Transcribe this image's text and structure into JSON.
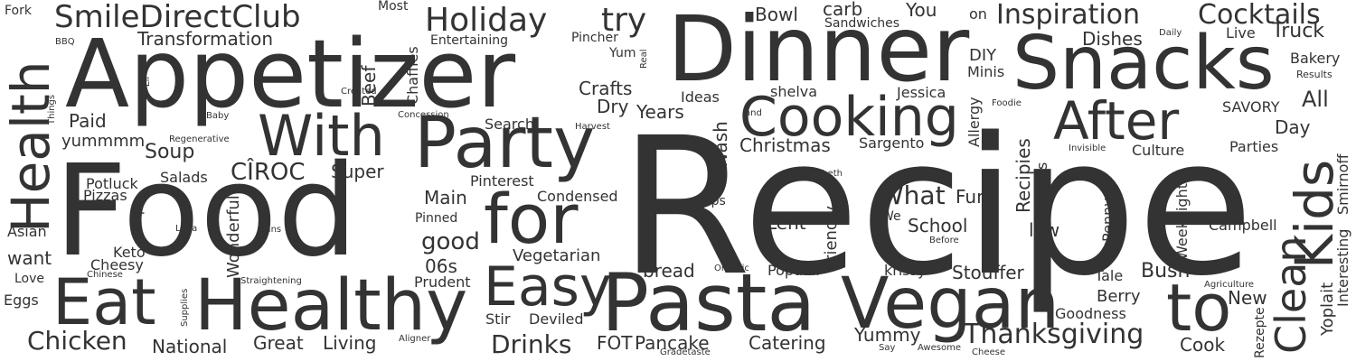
{
  "colors": {
    "background": "#ffffff",
    "text": "#333333"
  },
  "words": {
    "recipe": "Recipe",
    "food": "Food",
    "dinner": "Dinner",
    "appetizer": "Appetizer",
    "snacks": "Snacks",
    "pasta": "Pasta",
    "vegan": "Vegan",
    "healthy": "Healthy",
    "eat": "Eat",
    "party": "Party",
    "cooking": "Cooking",
    "after": "After",
    "with": "With",
    "for": "for",
    "to": "to",
    "health": "Health",
    "kids": "Kids",
    "clean": "Clean",
    "easy": "Easy",
    "smiledirectclub": "SmileDirectClub",
    "holiday": "Holiday",
    "try": "try",
    "inspiration": "Inspiration",
    "cocktails": "Cocktails",
    "thanksgiving": "Thanksgiving",
    "chicken": "Chicken",
    "drinks": "Drinks",
    "transformation": "Transformation",
    "bowl": "Bowl",
    "carb": "carb",
    "you": "You",
    "on": "on",
    "truck": "Truck",
    "dishes": "Dishes",
    "live": "Live",
    "bakery": "Bakery",
    "diy": "DIY",
    "minis": "Minis",
    "all": "All",
    "savory": "SAVORY",
    "day": "Day",
    "parties": "Parties",
    "culture": "Culture",
    "christmas": "Christmas",
    "sargento": "Sargento",
    "jessica": "Jessica",
    "shelva": "shelva",
    "ideas": "Ideas",
    "years": "Years",
    "dry": "Dry",
    "crafts": "Crafts",
    "pincher": "Pincher",
    "yum": "Yum",
    "entertaining": "Entertaining",
    "most": "Most",
    "sandwiches": "Sandwiches",
    "beef": "Beef",
    "chaffles": "Chaffles",
    "fork": "Fork",
    "bbq": "BBQ",
    "paid": "Paid",
    "yummmm": "yummmm",
    "soup": "Soup",
    "ciroc": "CÎROC",
    "super": "Super",
    "salads": "Salads",
    "potluck": "Potluck",
    "pizzas": "Pizzas",
    "asian": "Asian",
    "want": "want",
    "love": "Love",
    "eggs": "Eggs",
    "keto": "Keto",
    "cheesy": "Cheesy",
    "pinterest": "Pinterest",
    "main": "Main",
    "condensed": "Condensed",
    "pinned": "Pinned",
    "good": "good",
    "06s": "06s",
    "vegetarian": "Vegetarian",
    "bread": "bread",
    "prudent": "Prudent",
    "stir": "Stir",
    "deviled": "Deviled",
    "fot": "FOT",
    "pancake": "Pancake",
    "national": "National",
    "great": "Great",
    "living": "Living",
    "catering": "Catering",
    "yummy": "Yummy",
    "cook": "Cook",
    "bush": "Bush",
    "berry": "Berry",
    "goodness": "Goodness",
    "tale": "Tale",
    "new": "New",
    "stouffer": "Stouffer",
    "krissy": "krissy",
    "popular": "Popular",
    "school": "School",
    "what": "What",
    "fun": "Fun",
    "lent": "Lent",
    "we": "We",
    "low": "low",
    "campbell": "Campbell",
    "search": "Search",
    "dips": "Dips",
    "wash": "Wash",
    "friendly": "Friendly",
    "wonderful": "Wonderful",
    "up": "Up",
    "allergy": "Allergy",
    "recipies": "Recipies",
    "suppers": "Suppers",
    "penny": "Penny",
    "weeknight": "Weeknight",
    "smirnoff": "Smirnoff",
    "interesting": "Interesting",
    "yoplait": "Yoplait",
    "rezepte": "Rezepte",
    "results": "Results",
    "daily": "Daily",
    "foodie": "Foodie",
    "invisible": "Invisible",
    "agriculture": "Agriculture",
    "organic": "Organic",
    "before": "Before",
    "teeth": "Teeth",
    "and": "and",
    "harvest": "Harvest",
    "concession": "Concession",
    "created": "Created",
    "real": "Real",
    "lil": "Lil'",
    "things": "Things",
    "baby": "Baby",
    "regenerative": "Regenerative",
    "luna": "Luna",
    "pins": "Pins",
    "chinese": "Chinese",
    "supplies": "Supplies",
    "straightening": "Straightening",
    "aligner": "Aligner",
    "gradetaste": "Gradetaste",
    "say": "Say",
    "awesome": "Awesome",
    "cheese": "Cheese"
  }
}
